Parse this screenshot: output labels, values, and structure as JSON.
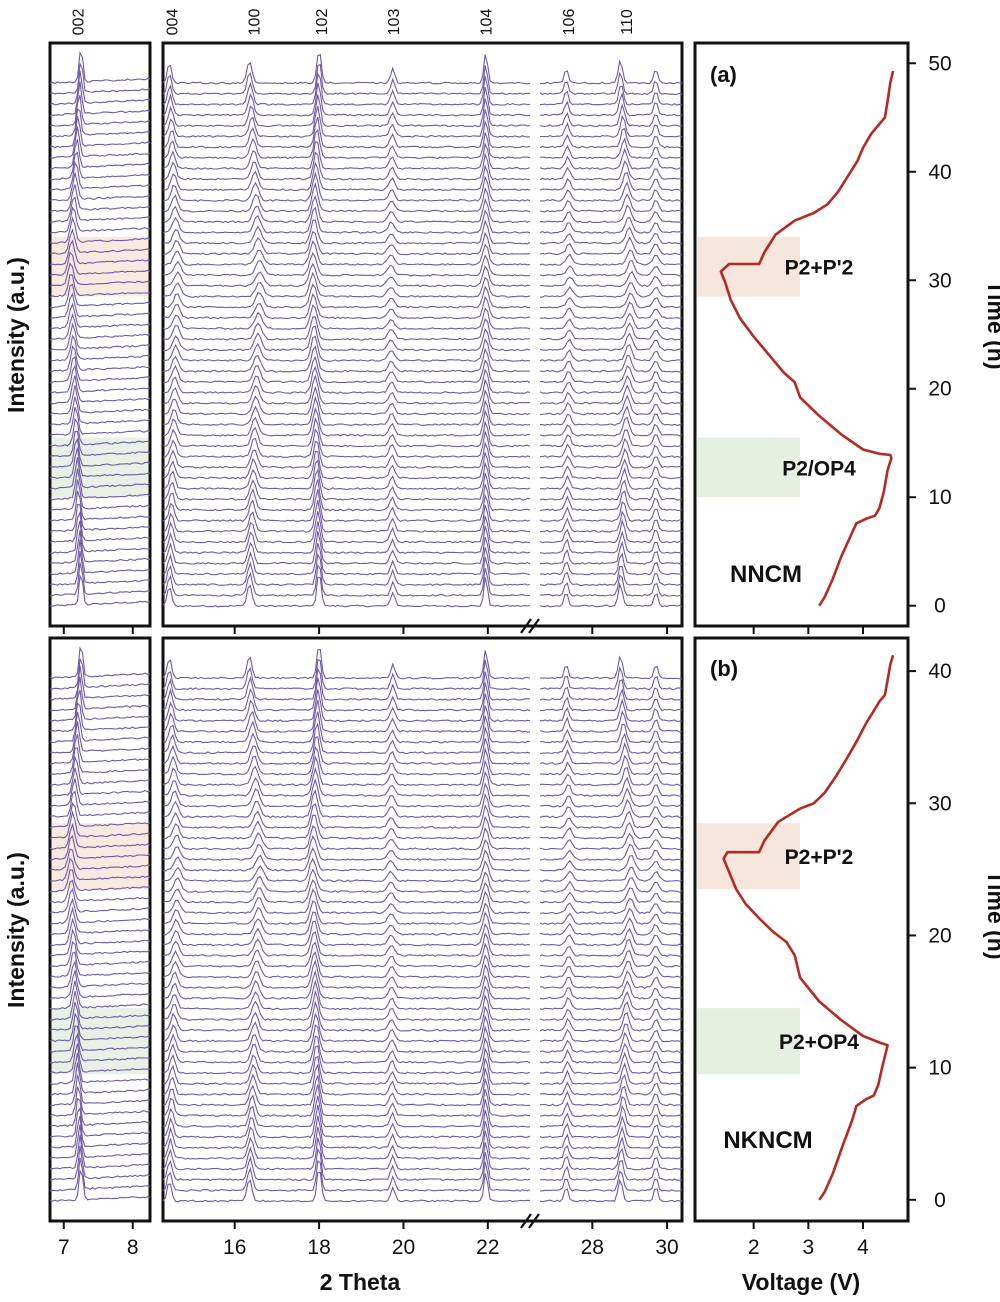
{
  "colors": {
    "xrd_trace": "#6f5aa8",
    "voltage_curve": "#b52a22",
    "p2_p2prime_band": "#f7e6dc",
    "p2_op4_band": "#e5efe2",
    "frame": "#111111"
  },
  "chart_data": [
    {
      "type": "line",
      "panel": "a",
      "kind": "waterfall-xrd",
      "xlabel": "2 Theta",
      "ylabel": "Intensity (a.u.)",
      "trace_count": 50,
      "x_ranges": [
        [
          6.8,
          8.25
        ],
        [
          14.3,
          23.0
        ],
        [
          26.6,
          30.4
        ]
      ],
      "x_ticks": [
        7,
        8,
        16,
        18,
        20,
        22,
        28,
        30
      ],
      "x_break": "//",
      "peak_labels": [
        "002",
        "004",
        "100",
        "102",
        "103",
        "104",
        "106",
        "110"
      ],
      "shaded_regions": [
        {
          "label": "P2+P'2",
          "color": "p2_p2prime_band"
        },
        {
          "label": "P2/OP4",
          "color": "p2_op4_band"
        }
      ]
    },
    {
      "type": "line",
      "panel": "a",
      "kind": "voltage-time",
      "label": "(a)",
      "sample": "NNCM",
      "xlabel": "Voltage (V)",
      "ylabel": "Time (h)",
      "xlim": [
        1.0,
        4.75
      ],
      "ylim": [
        -1.5,
        51.5
      ],
      "x_ticks": [
        2,
        3,
        4
      ],
      "y_ticks": [
        0,
        10,
        20,
        30,
        40,
        50
      ],
      "points": [
        [
          3.2,
          0
        ],
        [
          3.3,
          0.8
        ],
        [
          3.45,
          2.5
        ],
        [
          3.6,
          4.5
        ],
        [
          3.78,
          6.5
        ],
        [
          3.88,
          7.6
        ],
        [
          4.05,
          8.0
        ],
        [
          4.22,
          8.3
        ],
        [
          4.3,
          9.0
        ],
        [
          4.38,
          10.5
        ],
        [
          4.45,
          12.5
        ],
        [
          4.52,
          13.6
        ],
        [
          4.5,
          13.9
        ],
        [
          4.3,
          14.0
        ],
        [
          4.0,
          14.4
        ],
        [
          3.6,
          15.8
        ],
        [
          3.2,
          17.5
        ],
        [
          2.85,
          19.2
        ],
        [
          2.75,
          20.6
        ],
        [
          2.55,
          21.5
        ],
        [
          2.3,
          23.0
        ],
        [
          2.0,
          24.8
        ],
        [
          1.75,
          26.5
        ],
        [
          1.58,
          28.2
        ],
        [
          1.48,
          29.8
        ],
        [
          1.4,
          30.8
        ],
        [
          1.55,
          31.5
        ],
        [
          2.1,
          31.5
        ],
        [
          2.2,
          32.6
        ],
        [
          2.4,
          34.2
        ],
        [
          2.75,
          35.5
        ],
        [
          3.1,
          36.2
        ],
        [
          3.35,
          37.0
        ],
        [
          3.55,
          38.2
        ],
        [
          3.75,
          39.8
        ],
        [
          3.9,
          41.0
        ],
        [
          4.0,
          42.2
        ],
        [
          4.15,
          43.5
        ],
        [
          4.3,
          44.4
        ],
        [
          4.4,
          45.0
        ],
        [
          4.45,
          46.5
        ],
        [
          4.5,
          48.2
        ],
        [
          4.55,
          49.3
        ]
      ],
      "shaded_regions": [
        {
          "label": "P2+P'2",
          "y_range": [
            28.5,
            34.0
          ]
        },
        {
          "label": "P2/OP4",
          "y_range": [
            10.0,
            15.5
          ]
        }
      ]
    },
    {
      "type": "line",
      "panel": "b",
      "kind": "waterfall-xrd",
      "xlabel": "2 Theta",
      "ylabel": "Intensity (a.u.)",
      "trace_count": 50,
      "x_ranges": [
        [
          6.8,
          8.25
        ],
        [
          14.3,
          23.0
        ],
        [
          26.6,
          30.4
        ]
      ],
      "x_ticks": [
        7,
        8,
        16,
        18,
        20,
        22,
        28,
        30
      ],
      "x_break": "//",
      "shaded_regions": [
        {
          "label": "P2+P'2",
          "color": "p2_p2prime_band"
        },
        {
          "label": "P2+OP4",
          "color": "p2_op4_band"
        }
      ]
    },
    {
      "type": "line",
      "panel": "b",
      "kind": "voltage-time",
      "label": "(b)",
      "sample": "NKNCM",
      "xlabel": "Voltage (V)",
      "ylabel": "Time (h)",
      "xlim": [
        1.0,
        4.75
      ],
      "ylim": [
        -1.3,
        42.2
      ],
      "x_ticks": [
        2,
        3,
        4
      ],
      "y_ticks": [
        0,
        10,
        20,
        30,
        40
      ],
      "points": [
        [
          3.2,
          0
        ],
        [
          3.3,
          0.6
        ],
        [
          3.45,
          2.0
        ],
        [
          3.62,
          4.0
        ],
        [
          3.8,
          6.0
        ],
        [
          3.88,
          7.1
        ],
        [
          4.05,
          7.6
        ],
        [
          4.2,
          7.9
        ],
        [
          4.28,
          8.7
        ],
        [
          4.35,
          10.0
        ],
        [
          4.42,
          11.2
        ],
        [
          4.45,
          11.7
        ],
        [
          4.3,
          11.9
        ],
        [
          4.0,
          12.4
        ],
        [
          3.6,
          13.6
        ],
        [
          3.2,
          15.0
        ],
        [
          2.85,
          16.8
        ],
        [
          2.75,
          18.5
        ],
        [
          2.6,
          19.5
        ],
        [
          2.35,
          20.3
        ],
        [
          2.1,
          21.3
        ],
        [
          1.85,
          22.4
        ],
        [
          1.68,
          23.5
        ],
        [
          1.55,
          24.8
        ],
        [
          1.45,
          25.8
        ],
        [
          1.52,
          26.3
        ],
        [
          2.1,
          26.3
        ],
        [
          2.2,
          27.2
        ],
        [
          2.45,
          28.6
        ],
        [
          2.85,
          29.6
        ],
        [
          3.1,
          30.0
        ],
        [
          3.3,
          30.8
        ],
        [
          3.5,
          32.0
        ],
        [
          3.72,
          33.5
        ],
        [
          3.9,
          34.8
        ],
        [
          4.05,
          36.0
        ],
        [
          4.2,
          37.0
        ],
        [
          4.3,
          37.7
        ],
        [
          4.4,
          38.2
        ],
        [
          4.45,
          39.3
        ],
        [
          4.5,
          40.5
        ],
        [
          4.55,
          41.2
        ]
      ],
      "shaded_regions": [
        {
          "label": "P2+P'2",
          "y_range": [
            23.5,
            28.5
          ]
        },
        {
          "label": "P2+OP4",
          "y_range": [
            9.5,
            14.5
          ]
        }
      ]
    }
  ]
}
